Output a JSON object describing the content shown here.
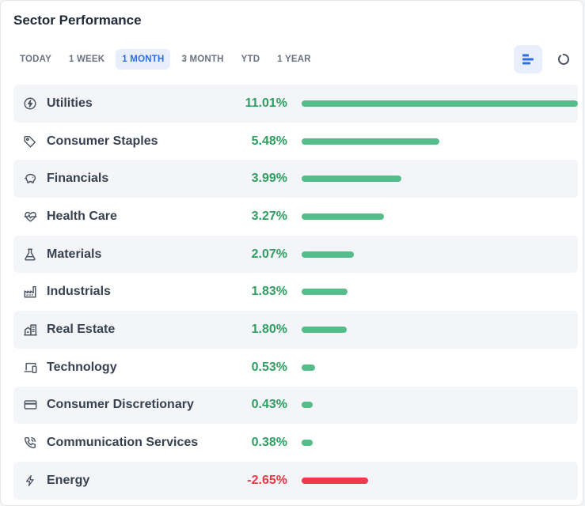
{
  "title": "Sector Performance",
  "tabs": [
    "TODAY",
    "1 WEEK",
    "1 MONTH",
    "3 MONTH",
    "YTD",
    "1 YEAR"
  ],
  "active_tab": "1 MONTH",
  "colors": {
    "positive": "#2f9e61",
    "negative": "#e63946",
    "bar_positive": "#55bd8a",
    "bar_negative": "#f0394f",
    "accent": "#2f6fe4"
  },
  "view_toggles": [
    {
      "name": "bar-chart-view",
      "icon": "bar-chart-icon",
      "active": true
    },
    {
      "name": "donut-chart-view",
      "icon": "donut-chart-icon",
      "active": false
    }
  ],
  "chart_data": {
    "type": "bar",
    "categories": [
      "Utilities",
      "Consumer Staples",
      "Financials",
      "Health Care",
      "Materials",
      "Industrials",
      "Real Estate",
      "Technology",
      "Consumer Discretionary",
      "Communication Services",
      "Energy"
    ],
    "values": [
      11.01,
      5.48,
      3.99,
      3.27,
      2.07,
      1.83,
      1.8,
      0.53,
      0.43,
      0.38,
      -2.65
    ],
    "labels": [
      "11.01%",
      "5.48%",
      "3.99%",
      "3.27%",
      "2.07%",
      "1.83%",
      "1.80%",
      "0.53%",
      "0.43%",
      "0.38%",
      "-2.65%"
    ],
    "icons": [
      "bolt-circle-icon",
      "tag-icon",
      "piggy-bank-icon",
      "heart-pulse-icon",
      "flask-icon",
      "factory-icon",
      "buildings-icon",
      "devices-icon",
      "credit-card-icon",
      "phone-icon",
      "lightning-icon"
    ]
  }
}
